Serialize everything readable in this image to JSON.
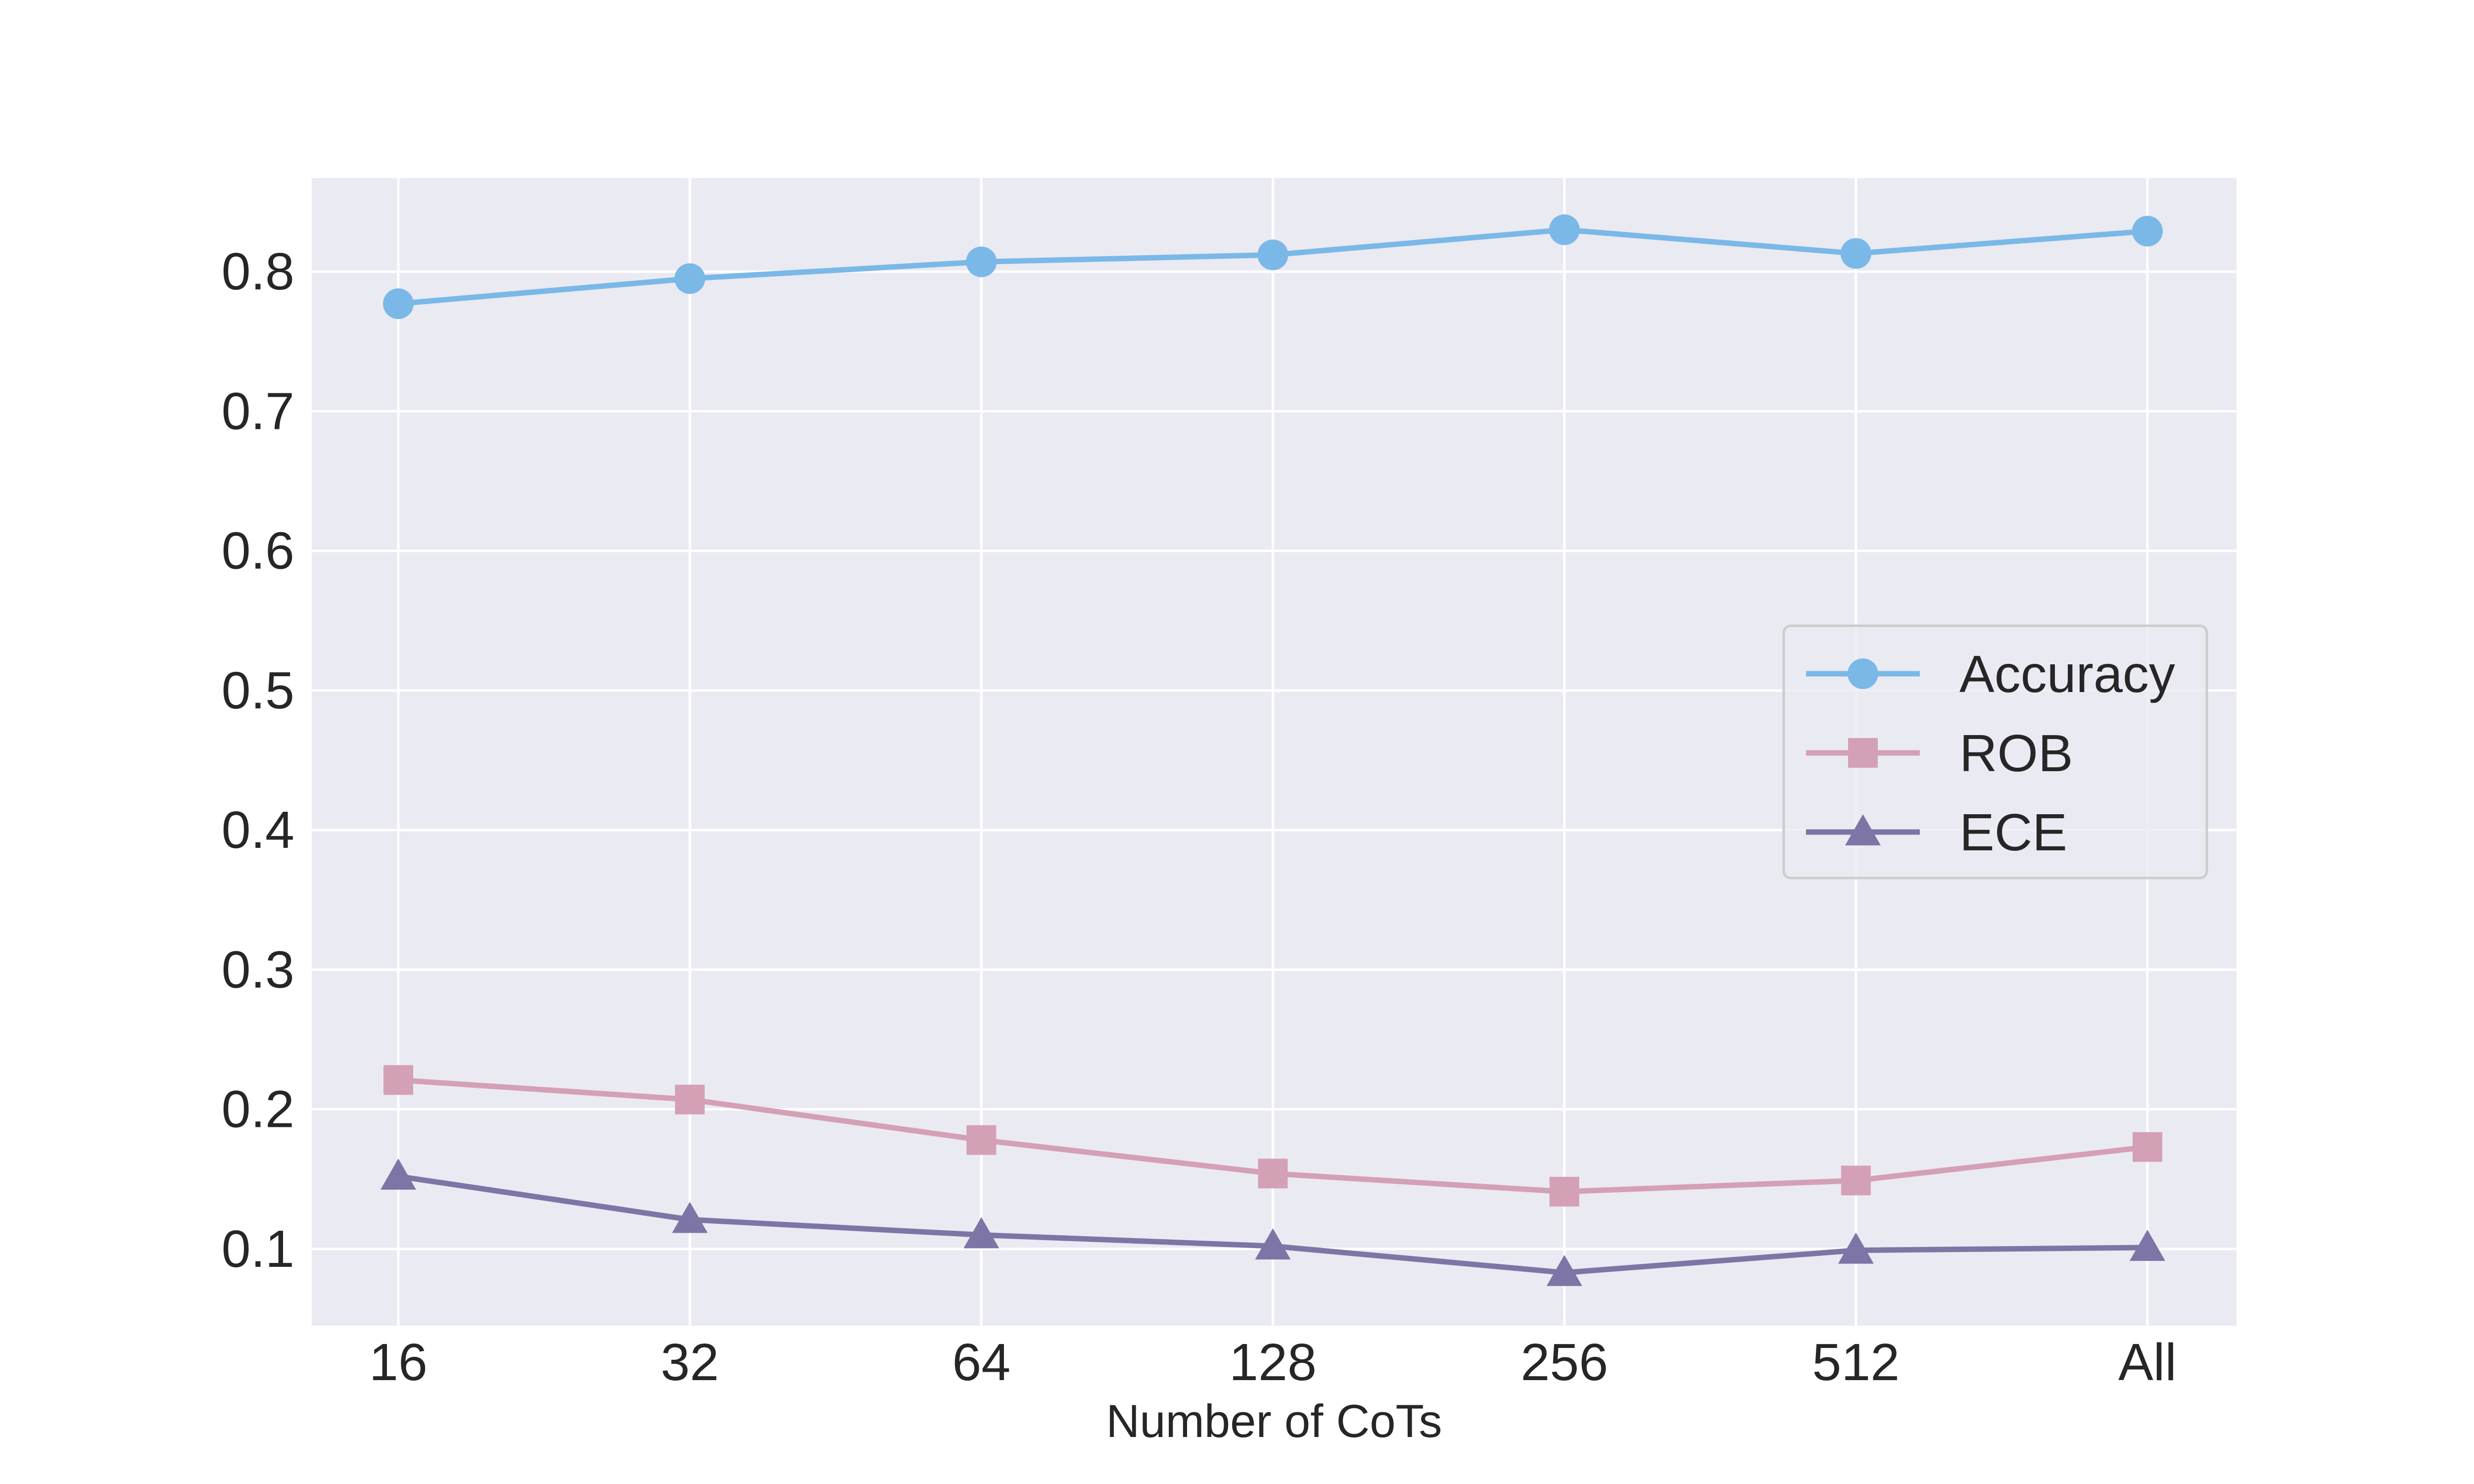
{
  "chart_data": {
    "type": "line",
    "title": "",
    "xlabel": "Number of CoTs",
    "ylabel": "",
    "categories": [
      "16",
      "32",
      "64",
      "128",
      "256",
      "512",
      "All"
    ],
    "y_ticks": [
      "0.1",
      "0.2",
      "0.3",
      "0.4",
      "0.5",
      "0.6",
      "0.7",
      "0.8"
    ],
    "ylim": [
      0.045,
      0.867
    ],
    "grid": true,
    "legend_position": "center-right",
    "background_color": "#eaeaf2",
    "grid_color": "#ffffff",
    "series": [
      {
        "name": "Accuracy",
        "marker": "circle",
        "color": "#7ab8e8",
        "values": [
          0.777,
          0.795,
          0.807,
          0.812,
          0.83,
          0.813,
          0.829
        ]
      },
      {
        "name": "ROB",
        "marker": "square",
        "color": "#d4a0b5",
        "values": [
          0.221,
          0.207,
          0.178,
          0.154,
          0.141,
          0.149,
          0.173
        ]
      },
      {
        "name": "ECE",
        "marker": "triangle",
        "color": "#7c75a5",
        "values": [
          0.152,
          0.121,
          0.11,
          0.102,
          0.083,
          0.099,
          0.101
        ]
      }
    ]
  }
}
